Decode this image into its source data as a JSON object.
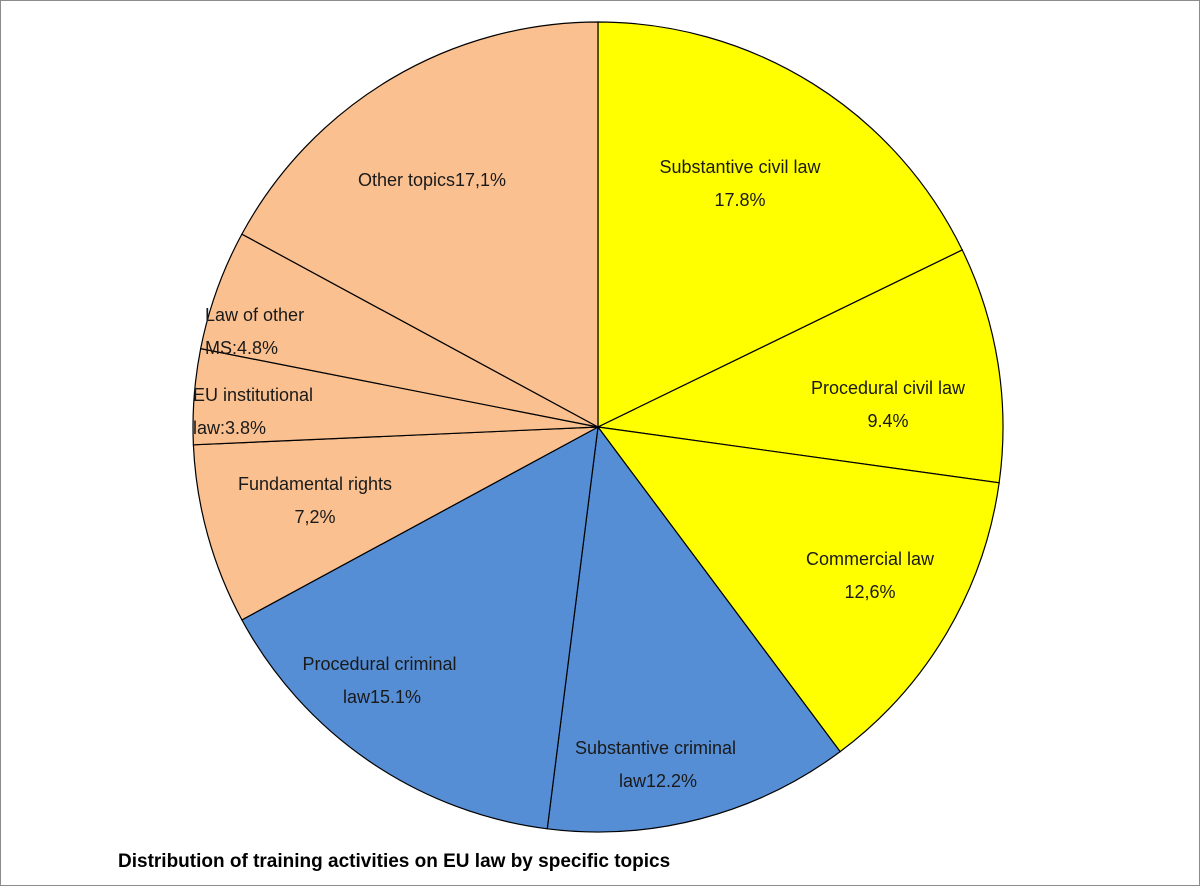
{
  "chart_data": {
    "type": "pie",
    "title": "Distribution of training activities on EU law by specific topics",
    "categories": [
      "Substantive civil law",
      "Procedural civil law",
      "Commercial law",
      "Substantive criminal law",
      "Procedural criminal law",
      "Fundamental rights",
      "EU institutional law:",
      "Law of other MS:",
      "Other topics"
    ],
    "values": [
      17.8,
      9.4,
      12.6,
      12.2,
      15.1,
      7.2,
      3.8,
      4.8,
      17.1
    ],
    "value_labels": [
      "17.8%",
      "9.4%",
      "12,6%",
      "12.2%",
      "15.1%",
      "7,2%",
      "3.8%",
      "4.8%",
      "17,1%"
    ],
    "colors": [
      "#ffff00",
      "#ffff00",
      "#ffff00",
      "#558ed5",
      "#558ed5",
      "#fac090",
      "#fac090",
      "#fac090",
      "#fac090"
    ]
  }
}
